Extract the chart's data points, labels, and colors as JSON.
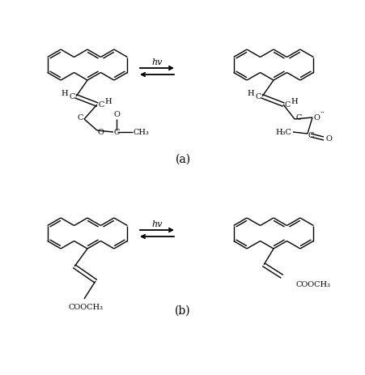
{
  "fig_width": 4.52,
  "fig_height": 4.64,
  "dpi": 100,
  "bg_color": "#ffffff",
  "line_color": "#000000",
  "label_a": "(a)",
  "label_b": "(b)",
  "hv_label": "hv",
  "font_size_label": 10,
  "font_size_atom": 7,
  "font_size_hv": 8,
  "lw": 1.0
}
